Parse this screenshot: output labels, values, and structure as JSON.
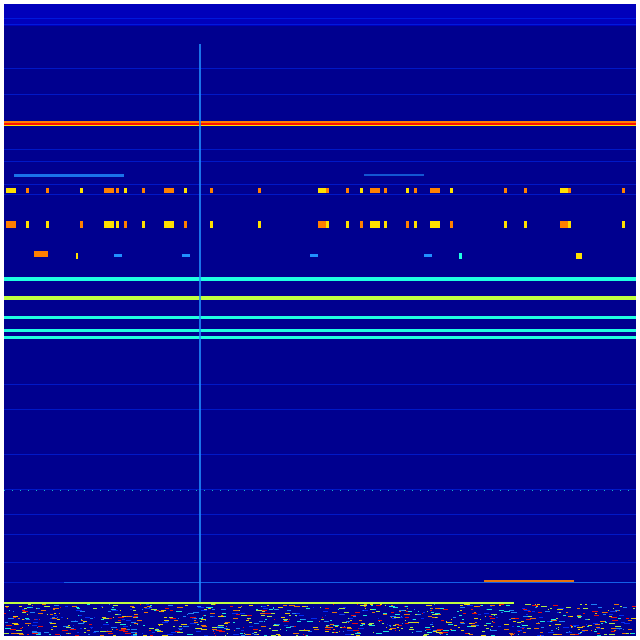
{
  "colormap": {
    "background": "#00008f",
    "faint": "#0000d8",
    "blue": "#0030ff",
    "lightblue": "#2090ff",
    "cyan": "#20ffe0",
    "yellowgreen": "#c0ff40",
    "yellow": "#ffe000",
    "orange": "#ff8000",
    "red": "#ff1000"
  }
}
